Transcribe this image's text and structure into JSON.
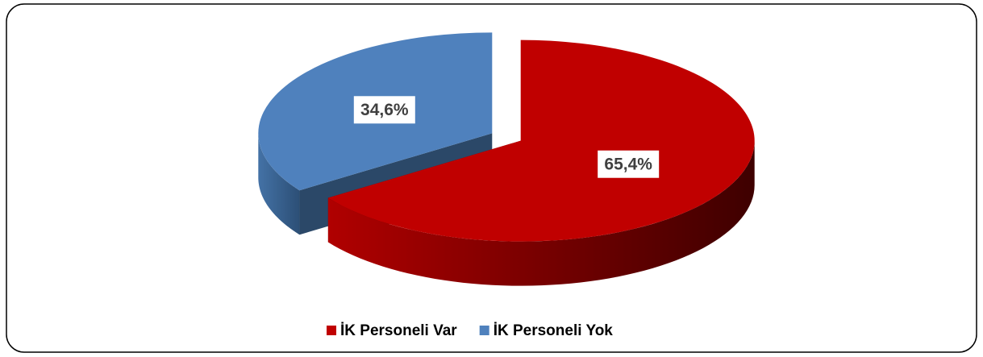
{
  "chart_data": {
    "type": "pie3d",
    "categories": [
      "İK Personeli Var",
      "İK Personeli Yok"
    ],
    "values": [
      65.4,
      34.6
    ],
    "value_labels": [
      "65,4%",
      "34,6%"
    ],
    "colors": [
      "#c00000",
      "#4f81bd"
    ],
    "legend": "bottom"
  }
}
